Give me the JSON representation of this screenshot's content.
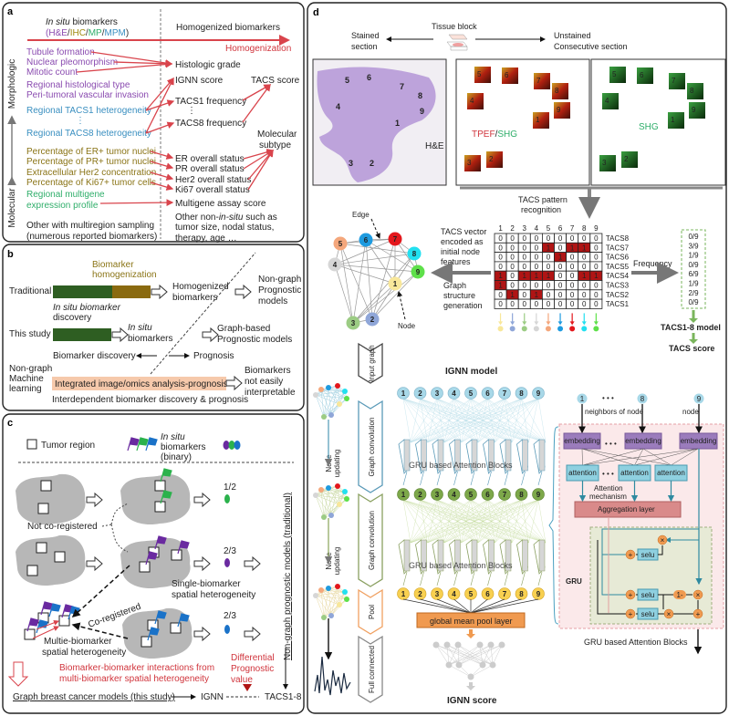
{
  "panel_a": {
    "label": "a",
    "in_situ": "In situ",
    "biomarkers": " biomarkers",
    "modalities": [
      {
        "text": "(",
        "color": "#8a4bb0"
      },
      {
        "text": "H&E",
        "color": "#8a4bb0"
      },
      {
        "text": "/",
        "color": "#333333"
      },
      {
        "text": "IHC",
        "color": "#a08a10"
      },
      {
        "text": "/",
        "color": "#333333"
      },
      {
        "text": "MP",
        "color": "#2fae6a"
      },
      {
        "text": "/",
        "color": "#333333"
      },
      {
        "text": "MPM",
        "color": "#3a8fc0"
      },
      {
        "text": ")",
        "color": "#333333"
      }
    ],
    "homogenized_biomarkers": "Homogenized biomarkers",
    "homogenization": "Homogenization",
    "axis_top": "Morphologic",
    "axis_bottom": "Molecular",
    "left_items": [
      "Tubule formation",
      "Nuclear pleomorphism",
      "Mitotic count",
      "Regional histological type",
      "Peri-tumoral vascular invasion",
      "Regional TACS1 heterogeneity",
      "⋮",
      "Regional TACS8 heterogeneity",
      "Percentage of ER+ tumor nuclei",
      "Percentage of PR+ tumor nuclei",
      "Extracellular Her2 concentration",
      "Percentage of Ki67+ tumor cells",
      "Regional multigene",
      "expression profile",
      "Other with multiregion sampling",
      "(numerous reported biomarkers)"
    ],
    "right_items": [
      "Histologic grade",
      "IGNN score",
      "TACS score",
      "TACS1 frequency",
      "⋮",
      "TACS8 frequency",
      "Molecular",
      "subtype",
      "ER overall status",
      "PR overall status",
      "Her2 overall status",
      "Ki67 overall status",
      "Multigene assay score",
      "Other non-",
      "in-situ",
      " such as",
      "tumor size, nodal status,",
      "therapy, age …"
    ]
  },
  "panel_b": {
    "label": "b",
    "biomarker": "Biomarker",
    "homogenization": "homogenization",
    "traditional": "Traditional",
    "homogenized": "Homogenized",
    "biomarkers": "biomarkers",
    "non_graph": "Non-graph",
    "prognostic": "Prognostic",
    "models": "models",
    "in_situ_biomarker": "In situ biomarker",
    "discovery": "discovery",
    "this_study": "This study",
    "in_situ": "In situ",
    "graph_based": "Graph-based",
    "prognostic_models": "Prognostic models",
    "biomarker_discovery": "Biomarker discovery",
    "prognosis": "Prognosis",
    "ml_lines": [
      "Non-graph",
      "Machine",
      "learning"
    ],
    "integrated": "Integrated image/omics analysis-prognosis",
    "not_interpretable": [
      "Biomarkers",
      "not easily",
      "interpretable"
    ],
    "interdependent": "Interdependent biomarker discovery & prognosis",
    "colors": {
      "green": "#2e5e22",
      "olive": "#8a6a10",
      "peach": "#f6c9ab"
    }
  },
  "panel_c": {
    "label": "c",
    "tumor_region": "Tumor region",
    "in_situ": "In situ",
    "biomarkers": "biomarkers",
    "binary": "(binary)",
    "fraction_green": "1/2",
    "fraction_purple": "2/3",
    "fraction_blue": "2/3",
    "not_coregistered": "Not co-registered",
    "single_biomarker": "Single-biomarker",
    "spatial_heterogeneity": "spatial heterogeneity",
    "coregistered": "Co-registered",
    "multie_biomarker": "Multie-biomarker",
    "interactions_1": "Biomarker-biomarker interactions from",
    "interactions_2": "multi-biomarker spatial heterogeneity",
    "differential": [
      "Differential",
      "Prognostic",
      "value"
    ],
    "graph_models": "Graph breast cancer models (this study)",
    "ignn": "IGNN",
    "tacs18": "TACS1-8",
    "non_graph_vertical": "Non-graph prognostic models (traditional)",
    "colors": {
      "purple": "#6a2aa0",
      "green": "#2bb24c",
      "blue": "#1a72c8"
    }
  },
  "panel_d": {
    "label": "d",
    "tissue_block": "Tissue block",
    "stained": [
      "Stained",
      "section"
    ],
    "unstained": [
      "Unstained",
      "Consecutive section"
    ],
    "he_label": "H&E",
    "tpef": "TPEF",
    "slash": "/",
    "shg": "SHG",
    "region_numbers": [
      "1",
      "2",
      "3",
      "4",
      "5",
      "6",
      "7",
      "8",
      "9"
    ],
    "tacs_pattern": [
      "TACS pattern",
      "recognition"
    ],
    "edge": "Edge",
    "node": "Node",
    "tacs_vector": [
      "TACS vector",
      "encoded as",
      "initial node",
      "features"
    ],
    "graph_structure": [
      "Graph",
      "structure",
      "generation"
    ],
    "frequency_label": "Frequency",
    "tacs1_8_model": "TACS1-8 model",
    "tacs_score": "TACS score",
    "node_colors": [
      "#f8e79a",
      "#8fa6d8",
      "#9ccc84",
      "#d6d6d6",
      "#f4a77c",
      "#1e9be0",
      "#e3171c",
      "#22e0f0",
      "#5ee04a"
    ],
    "matrix": {
      "columns": [
        "1",
        "2",
        "3",
        "4",
        "5",
        "6",
        "7",
        "8",
        "9"
      ],
      "rows": [
        {
          "name": "TACS8",
          "values": [
            0,
            0,
            0,
            0,
            0,
            0,
            0,
            0,
            0
          ]
        },
        {
          "name": "TACS7",
          "values": [
            0,
            0,
            0,
            0,
            1,
            0,
            1,
            1,
            0
          ]
        },
        {
          "name": "TACS6",
          "values": [
            0,
            0,
            0,
            0,
            0,
            1,
            0,
            0,
            0
          ]
        },
        {
          "name": "TACS5",
          "values": [
            0,
            0,
            0,
            0,
            0,
            0,
            0,
            0,
            0
          ]
        },
        {
          "name": "TACS4",
          "values": [
            1,
            0,
            1,
            1,
            1,
            0,
            0,
            1,
            1
          ]
        },
        {
          "name": "TACS3",
          "values": [
            1,
            0,
            0,
            0,
            0,
            0,
            0,
            0,
            0
          ]
        },
        {
          "name": "TACS2",
          "values": [
            0,
            1,
            0,
            1,
            0,
            0,
            0,
            0,
            0
          ]
        },
        {
          "name": "TACS1",
          "values": [
            0,
            0,
            0,
            0,
            0,
            0,
            0,
            0,
            0
          ]
        }
      ],
      "active_color": "#b01414"
    },
    "frequencies": [
      "0/9",
      "3/9",
      "1/9",
      "0/9",
      "6/9",
      "1/9",
      "2/9",
      "0/9"
    ],
    "steps": [
      "Input graph",
      "Graph convolution",
      "Graph convolution",
      "Pool",
      "Full connected"
    ],
    "node_updating": [
      "Node",
      "updating"
    ],
    "ignn_model": "IGNN model",
    "gru_blocks_inline": "GRU based Attention Blocks",
    "global_pool": "global mean pool layer",
    "ignn_score": "IGNN score",
    "detail": {
      "node_1": "1",
      "node_8": "8",
      "node_9": "9",
      "dots": "• • •",
      "neighbors": "neighbors of node",
      "node": "node",
      "embedding": "embedding",
      "attention": "attention",
      "attention_mechanism": [
        "Attention",
        "mechanism"
      ],
      "aggregation": "Aggregation layer",
      "gru": "GRU",
      "selu": "selu",
      "one_minus": "1-",
      "times": "×",
      "plus": "+",
      "gru_blocks": "GRU based Attention Blocks"
    }
  }
}
